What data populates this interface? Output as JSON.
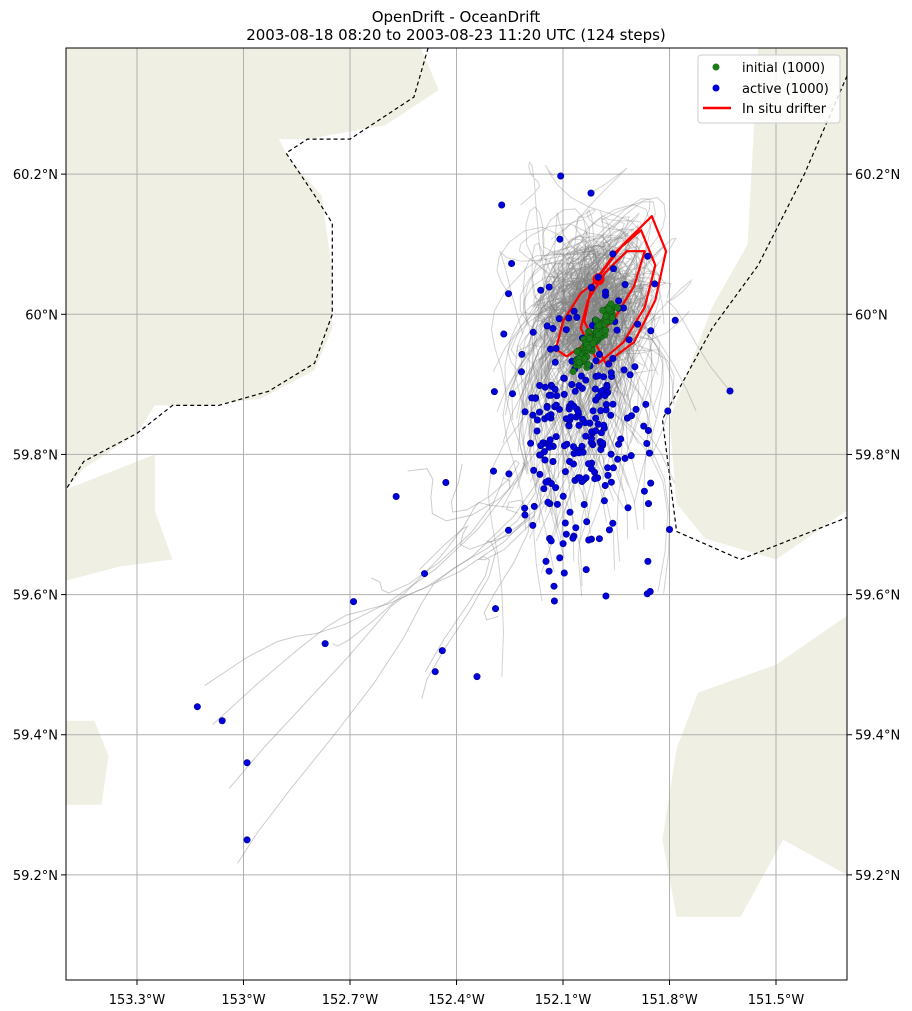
{
  "figure": {
    "title_line1": "OpenDrift - OceanDrift",
    "title_line2": "2003-08-18 08:20 to 2003-08-23 11:20 UTC (124 steps)"
  },
  "colors": {
    "land": "#efefe3",
    "grid": "#b0b0b0",
    "trajectory": "#808080",
    "initial": "#1a7a1a",
    "active": "#0000dd",
    "drifter": "#ff0000"
  },
  "chart_data": {
    "type": "scatter",
    "title": "OpenDrift - OceanDrift",
    "subtitle": "2003-08-18 08:20 to 2003-08-23 11:20 UTC (124 steps)",
    "xlabel": "",
    "ylabel": "",
    "xlim": [
      -153.5,
      -151.3
    ],
    "ylim": [
      59.05,
      60.38
    ],
    "xticks": [
      -153.3,
      -153.0,
      -152.7,
      -152.4,
      -152.1,
      -151.8,
      -151.5
    ],
    "xtick_labels": [
      "153.3°W",
      "153°W",
      "152.7°W",
      "152.4°W",
      "152.1°W",
      "151.8°W",
      "151.5°W"
    ],
    "yticks": [
      59.2,
      59.4,
      59.6,
      59.8,
      60.0,
      60.2
    ],
    "ytick_labels": [
      "59.2°N",
      "59.4°N",
      "59.6°N",
      "59.8°N",
      "60°N",
      "60.2°N"
    ],
    "grid": true,
    "legend_position": "top-right",
    "series": [
      {
        "name": "initial (1000)",
        "kind": "points",
        "count": 1000,
        "center": [
          -152.0,
          59.97
        ],
        "spread": [
          0.04,
          0.03
        ]
      },
      {
        "name": "active (1000)",
        "kind": "points",
        "count": 1000,
        "center": [
          -152.05,
          59.85
        ],
        "spread": [
          0.18,
          0.15
        ]
      },
      {
        "name": "In situ drifter",
        "kind": "line",
        "x": [
          -152.0,
          -152.05,
          -152.1,
          -152.12,
          -152.09,
          -152.03,
          -151.96,
          -151.9,
          -151.87,
          -151.92,
          -151.98,
          -152.03,
          -152.05,
          -152.0,
          -151.93,
          -151.87,
          -151.84,
          -151.88,
          -151.95,
          -152.02,
          -152.04,
          -151.98,
          -151.9,
          -151.84,
          -151.81,
          -151.85,
          -151.93,
          -151.99,
          -152.0
        ],
        "y": [
          60.05,
          60.03,
          59.99,
          59.95,
          59.94,
          59.96,
          59.99,
          60.04,
          60.09,
          60.09,
          60.06,
          60.02,
          59.98,
          59.93,
          59.96,
          60.01,
          60.07,
          60.12,
          60.09,
          60.04,
          59.99,
          59.93,
          59.96,
          60.02,
          60.09,
          60.14,
          60.1,
          60.06,
          60.05
        ]
      }
    ],
    "stranded_outliers": [
      [
        -153.13,
        59.44
      ],
      [
        -153.06,
        59.42
      ],
      [
        -152.99,
        59.36
      ],
      [
        -152.99,
        59.25
      ],
      [
        -152.77,
        59.53
      ],
      [
        -152.69,
        59.59
      ],
      [
        -152.57,
        59.74
      ],
      [
        -152.49,
        59.63
      ],
      [
        -152.44,
        59.52
      ],
      [
        -152.46,
        59.49
      ],
      [
        -152.29,
        59.58
      ],
      [
        -152.43,
        59.76
      ]
    ],
    "legend": [
      "initial (1000)",
      "active (1000)",
      "In situ drifter"
    ]
  }
}
